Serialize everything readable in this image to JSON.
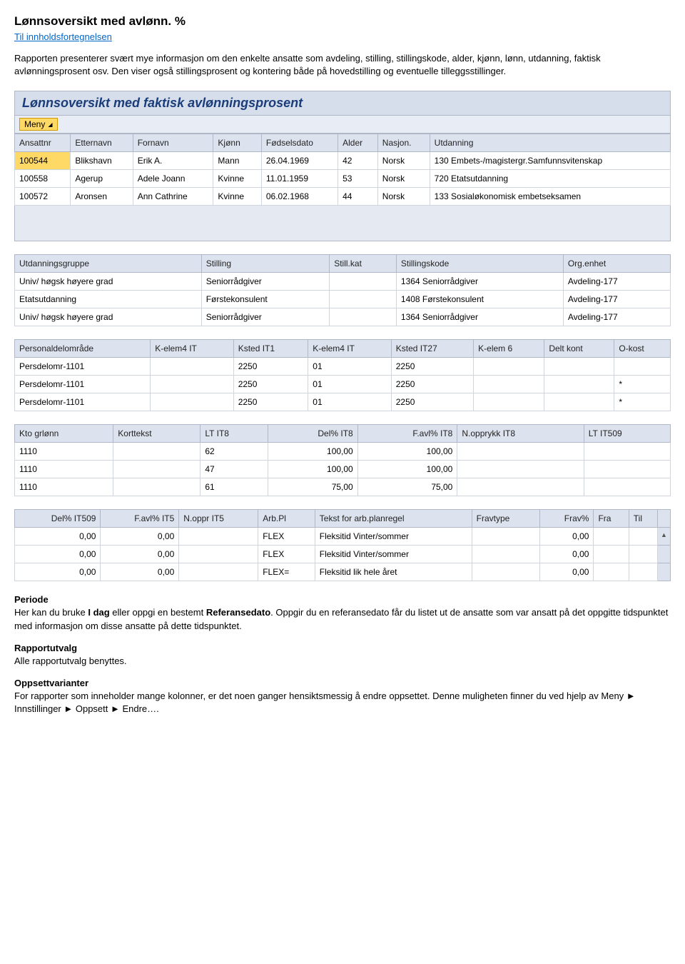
{
  "page": {
    "title": "Lønnsoversikt med avlønn. %",
    "toc_link": "Til innholdsfortegnelsen",
    "intro": "Rapporten presenterer svært mye informasjon om den enkelte ansatte som avdeling, stilling, stillingskode, alder, kjønn, lønn, utdanning, faktisk avlønningsprosent osv. Den viser også stillingsprosent og kontering både på hovedstilling og eventuelle tilleggsstillinger."
  },
  "report": {
    "title": "Lønnsoversikt med faktisk avlønningsprosent",
    "meny_label": "Meny"
  },
  "table1": {
    "headers": [
      "Ansattnr",
      "Etternavn",
      "Fornavn",
      "Kjønn",
      "Fødselsdato",
      "Alder",
      "Nasjon.",
      "Utdanning"
    ],
    "rows": [
      [
        "100544",
        "Blikshavn",
        "Erik A.",
        "Mann",
        "26.04.1969",
        "42",
        "Norsk",
        "130 Embets-/magistergr.Samfunnsvitenskap"
      ],
      [
        "100558",
        "Agerup",
        "Adele Joann",
        "Kvinne",
        "11.01.1959",
        "53",
        "Norsk",
        "720 Etatsutdanning"
      ],
      [
        "100572",
        "Aronsen",
        "Ann Cathrine",
        "Kvinne",
        "06.02.1968",
        "44",
        "Norsk",
        "133 Sosialøkonomisk embetseksamen"
      ]
    ]
  },
  "table2": {
    "headers": [
      "Utdanningsgruppe",
      "Stilling",
      "Still.kat",
      "Stillingskode",
      "Org.enhet"
    ],
    "rows": [
      [
        "Univ/ høgsk høyere grad",
        "Seniorrådgiver",
        "",
        "1364 Seniorrådgiver",
        "Avdeling-177"
      ],
      [
        "Etatsutdanning",
        "Førstekonsulent",
        "",
        "1408 Førstekonsulent",
        "Avdeling-177"
      ],
      [
        "Univ/ høgsk høyere grad",
        "Seniorrådgiver",
        "",
        "1364 Seniorrådgiver",
        "Avdeling-177"
      ]
    ]
  },
  "table3": {
    "headers": [
      "Personaldelområde",
      "K-elem4 IT",
      "Ksted IT1",
      "K-elem4 IT",
      "Ksted IT27",
      "K-elem 6",
      "Delt kont",
      "O-kost"
    ],
    "rows": [
      [
        "Persdelomr-1101",
        "",
        "2250",
        "01",
        "2250",
        "",
        "",
        ""
      ],
      [
        "Persdelomr-1101",
        "",
        "2250",
        "01",
        "2250",
        "",
        "",
        "*"
      ],
      [
        "Persdelomr-1101",
        "",
        "2250",
        "01",
        "2250",
        "",
        "",
        "*"
      ]
    ]
  },
  "table4": {
    "headers": [
      "Kto grlønn",
      "Korttekst",
      "LT IT8",
      "Del% IT8",
      "F.avl% IT8",
      "N.opprykk IT8",
      "LT IT509"
    ],
    "rows": [
      [
        "1110",
        "",
        "62",
        "100,00",
        "100,00",
        "",
        ""
      ],
      [
        "1110",
        "",
        "47",
        "100,00",
        "100,00",
        "",
        ""
      ],
      [
        "1110",
        "",
        "61",
        "75,00",
        "75,00",
        "",
        ""
      ]
    ]
  },
  "table5": {
    "headers": [
      "Del% IT509",
      "F.avl% IT5",
      "N.oppr IT5",
      "Arb.Pl",
      "Tekst for arb.planregel",
      "Fravtype",
      "Frav%",
      "Fra",
      "Til",
      ""
    ],
    "rows": [
      [
        "0,00",
        "0,00",
        "",
        "FLEX",
        "Fleksitid Vinter/sommer",
        "",
        "0,00",
        "",
        "",
        ""
      ],
      [
        "0,00",
        "0,00",
        "",
        "FLEX",
        "Fleksitid Vinter/sommer",
        "",
        "0,00",
        "",
        "",
        ""
      ],
      [
        "0,00",
        "0,00",
        "",
        "FLEX=",
        "Fleksitid lik hele året",
        "",
        "0,00",
        "",
        "",
        ""
      ]
    ]
  },
  "sections": {
    "periode_label": "Periode",
    "periode_text_1": "Her kan du bruke ",
    "periode_bold_1": "I dag",
    "periode_text_2": " eller oppgi en bestemt ",
    "periode_bold_2": "Referansedato",
    "periode_text_3": ". Oppgir du en referansedato får du listet ut de ansatte som var ansatt på det oppgitte tidspunktet med informasjon om disse ansatte på dette tidspunktet.",
    "rapportutvalg_label": "Rapportutvalg",
    "rapportutvalg_text": "Alle rapportutvalg benyttes.",
    "oppsett_label": "Oppsettvarianter",
    "oppsett_text": "For rapporter som inneholder mange kolonner, er det noen ganger hensiktsmessig å endre oppsettet. Denne muligheten finner du ved hjelp av Meny ► Innstillinger ► Oppsett ► Endre…."
  }
}
